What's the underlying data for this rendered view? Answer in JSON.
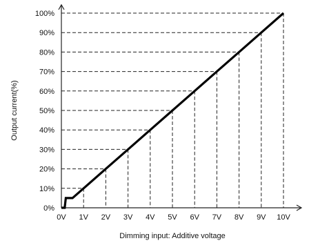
{
  "chart_data": {
    "type": "line",
    "xlabel": "Dimming input: Additive voltage",
    "ylabel": "Output current(%)",
    "x_ticks": [
      "0V",
      "1V",
      "2V",
      "3V",
      "4V",
      "5V",
      "6V",
      "7V",
      "8V",
      "9V",
      "10V"
    ],
    "y_ticks": [
      "0%",
      "10%",
      "20%",
      "30%",
      "40%",
      "50%",
      "60%",
      "70%",
      "80%",
      "90%",
      "100%"
    ],
    "xlim": [
      0,
      10
    ],
    "ylim": [
      0,
      100
    ],
    "series": [
      {
        "x": [
          0,
          0.15,
          0.2,
          0.5,
          1,
          2,
          3,
          4,
          5,
          6,
          7,
          8,
          9,
          10
        ],
        "y": [
          0,
          0,
          5,
          5,
          10,
          20,
          30,
          40,
          50,
          60,
          70,
          80,
          90,
          100
        ]
      }
    ],
    "guides": "dashed drop lines from the curve at each integer volt and each 10% level",
    "color": "#000000"
  }
}
